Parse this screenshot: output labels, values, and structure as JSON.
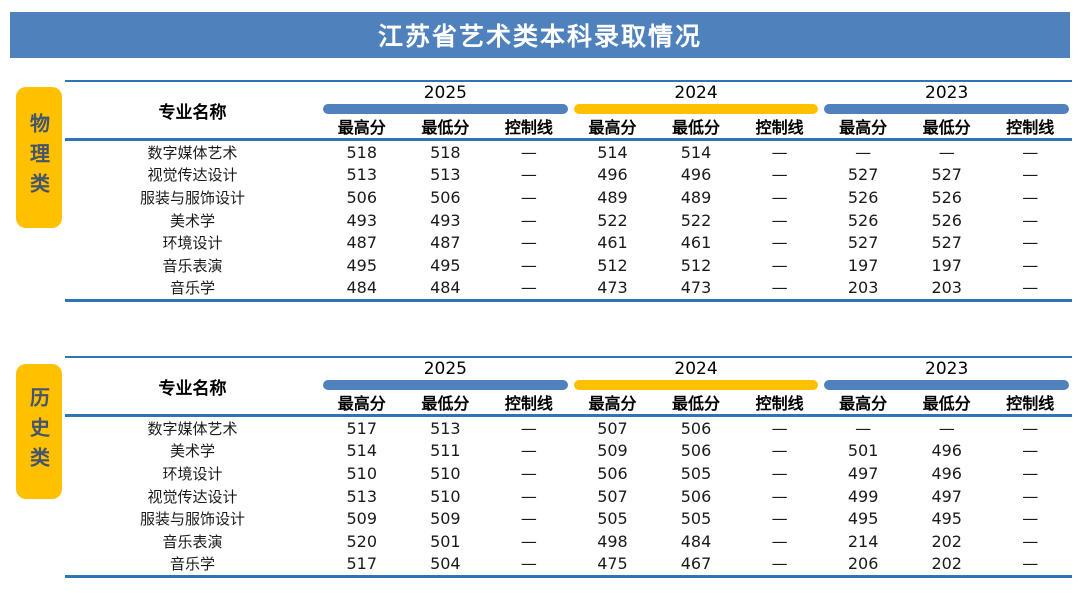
{
  "title": "江苏省艺术类本科录取情况",
  "header": {
    "name_col": "专业名称",
    "years": [
      "2025",
      "2024",
      "2023"
    ],
    "sub_cols": [
      "最高分",
      "最低分",
      "控制线"
    ]
  },
  "side_labels": [
    "物理类",
    "历史类"
  ],
  "colors": {
    "banner_blue": "#4F81BD",
    "year_bar_blue": "#4F81BD",
    "year_bar_yellow": "#FFC000",
    "rule_blue": "#2E75B6",
    "side_pill_bg": "#FFC000",
    "side_pill_text": "#44546A"
  },
  "chart_data": [
    {
      "type": "table",
      "title": "江苏省艺术类本科录取情况 — 物理类",
      "category": "物理类",
      "year_bar_colors": [
        "blue",
        "yellow",
        "blue"
      ],
      "columns": [
        "专业名称",
        "2025 最高分",
        "2025 最低分",
        "2025 控制线",
        "2024 最高分",
        "2024 最低分",
        "2024 控制线",
        "2023 最高分",
        "2023 最低分",
        "2023 控制线"
      ],
      "rows": [
        [
          "数字媒体艺术",
          "518",
          "518",
          "—",
          "514",
          "514",
          "—",
          "—",
          "—",
          "—"
        ],
        [
          "视觉传达设计",
          "513",
          "513",
          "—",
          "496",
          "496",
          "—",
          "527",
          "527",
          "—"
        ],
        [
          "服装与服饰设计",
          "506",
          "506",
          "—",
          "489",
          "489",
          "—",
          "526",
          "526",
          "—"
        ],
        [
          "美术学",
          "493",
          "493",
          "—",
          "522",
          "522",
          "—",
          "526",
          "526",
          "—"
        ],
        [
          "环境设计",
          "487",
          "487",
          "—",
          "461",
          "461",
          "—",
          "527",
          "527",
          "—"
        ],
        [
          "音乐表演",
          "495",
          "495",
          "—",
          "512",
          "512",
          "—",
          "197",
          "197",
          "—"
        ],
        [
          "音乐学",
          "484",
          "484",
          "—",
          "473",
          "473",
          "—",
          "203",
          "203",
          "—"
        ]
      ]
    },
    {
      "type": "table",
      "title": "江苏省艺术类本科录取情况 — 历史类",
      "category": "历史类",
      "year_bar_colors": [
        "blue",
        "yellow",
        "blue"
      ],
      "columns": [
        "专业名称",
        "2025 最高分",
        "2025 最低分",
        "2025 控制线",
        "2024 最高分",
        "2024 最低分",
        "2024 控制线",
        "2023 最高分",
        "2023 最低分",
        "2023 控制线"
      ],
      "rows": [
        [
          "数字媒体艺术",
          "517",
          "513",
          "—",
          "507",
          "506",
          "—",
          "—",
          "—",
          "—"
        ],
        [
          "美术学",
          "514",
          "511",
          "—",
          "509",
          "506",
          "—",
          "501",
          "496",
          "—"
        ],
        [
          "环境设计",
          "510",
          "510",
          "—",
          "506",
          "505",
          "—",
          "497",
          "496",
          "—"
        ],
        [
          "视觉传达设计",
          "513",
          "510",
          "—",
          "507",
          "506",
          "—",
          "499",
          "497",
          "—"
        ],
        [
          "服装与服饰设计",
          "509",
          "509",
          "—",
          "505",
          "505",
          "—",
          "495",
          "495",
          "—"
        ],
        [
          "音乐表演",
          "520",
          "501",
          "—",
          "498",
          "484",
          "—",
          "214",
          "202",
          "—"
        ],
        [
          "音乐学",
          "517",
          "504",
          "—",
          "475",
          "467",
          "—",
          "206",
          "202",
          "—"
        ]
      ]
    }
  ]
}
